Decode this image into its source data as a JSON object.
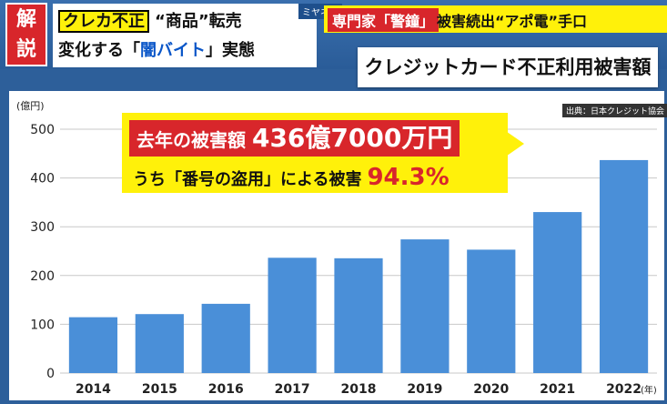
{
  "banner": {
    "kaisetsu": [
      "解",
      "説"
    ],
    "mini_tag": "ミヤネ屋",
    "headline_tag": "クレカ不正",
    "headline_line1_rest": "“商品”転売",
    "headline_line2_pre": "変化する「",
    "headline_line2_hl": "闇バイト",
    "headline_line2_post": "」実態",
    "ticker_red": "専門家「警鐘」",
    "ticker_rest": "被害続出“アポ電”手口"
  },
  "panel_title": "クレジットカード不正利用被害額",
  "source": "出典：日本クレジット協会",
  "callout": {
    "line1_pre": "去年の被害額 ",
    "line1_value": "436億7000万円",
    "line2_text": "うち「番号の盗用」による被害",
    "line2_pct": "94.3%"
  },
  "chart_data": {
    "type": "bar",
    "title": "クレジットカード不正利用被害額",
    "ylabel": "(億円)",
    "xlabel": "(年)",
    "categories": [
      "2014",
      "2015",
      "2016",
      "2017",
      "2018",
      "2019",
      "2020",
      "2021",
      "2022"
    ],
    "values": [
      114.5,
      120.9,
      142.0,
      236.4,
      235.4,
      274.1,
      253.0,
      330.1,
      436.7
    ],
    "ylim": [
      0,
      500
    ],
    "yticks": [
      0,
      100,
      200,
      300,
      400,
      500
    ],
    "grid": true,
    "bar_color": "#4a8fd8"
  }
}
